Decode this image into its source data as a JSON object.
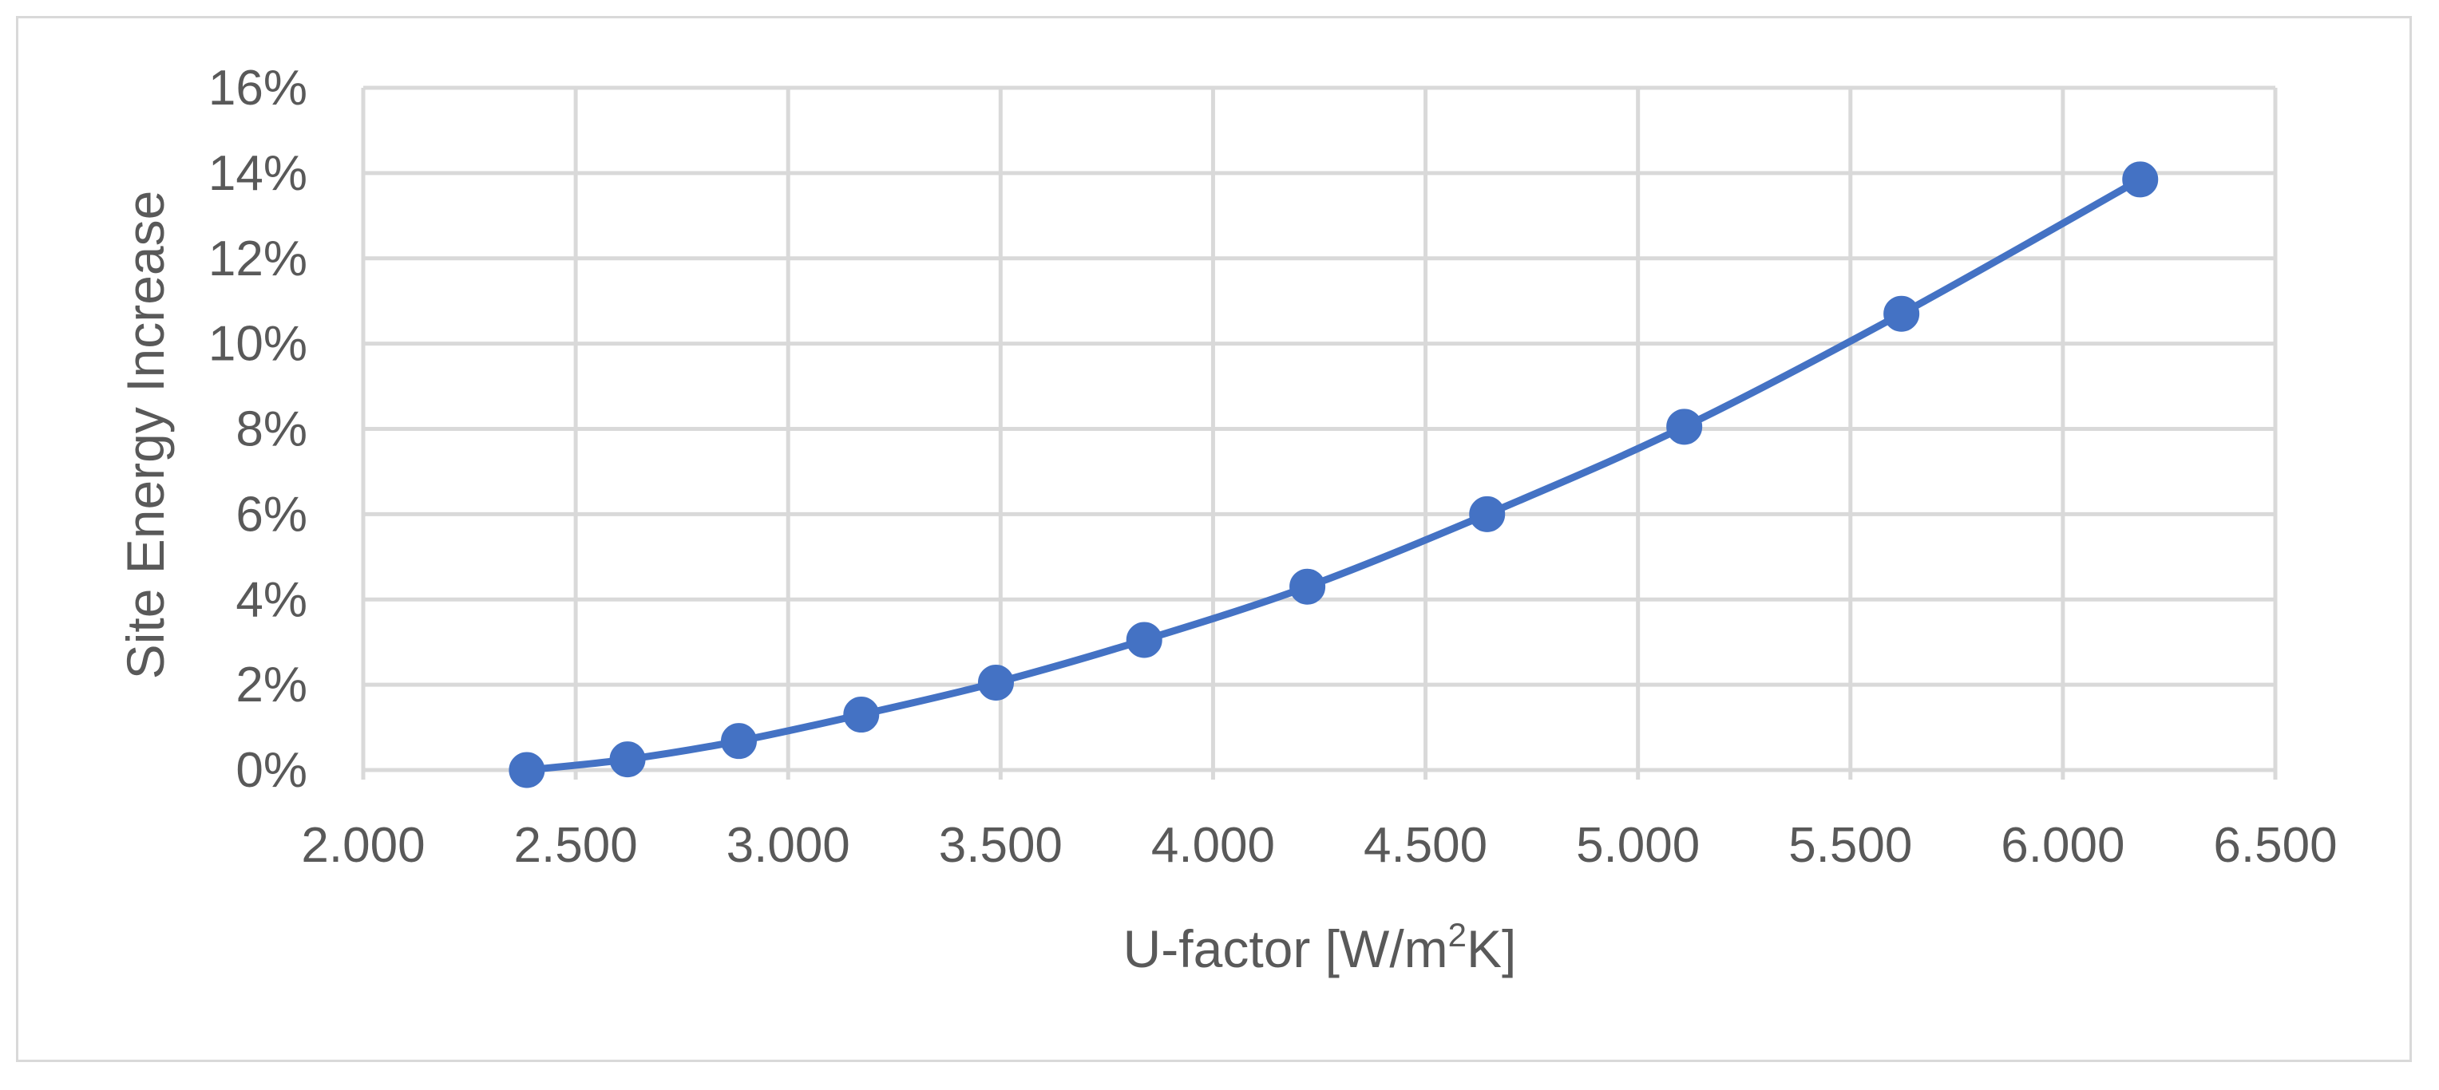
{
  "chart_data": {
    "type": "scatter",
    "title": "",
    "xlabel": "U-factor [W/m",
    "xlabel_sup": "2",
    "xlabel_suffix": "K]",
    "ylabel": "Site Energy Increase",
    "xlim": [
      2.0,
      6.5
    ],
    "ylim": [
      0,
      16
    ],
    "x_ticks": [
      "2.000",
      "2.500",
      "3.000",
      "3.500",
      "4.000",
      "4.500",
      "5.000",
      "5.500",
      "6.000",
      "6.500"
    ],
    "y_ticks": [
      "0%",
      "2%",
      "4%",
      "6%",
      "8%",
      "10%",
      "12%",
      "14%",
      "16%"
    ],
    "grid": true,
    "legend": "none",
    "line_style": "smooth-with-markers",
    "series": [
      {
        "color": "#4472c4",
        "x": [
          2.385,
          2.622,
          2.884,
          3.172,
          3.489,
          3.838,
          4.222,
          4.645,
          5.109,
          5.62,
          6.182
        ],
        "y": [
          0.0,
          0.25,
          0.68,
          1.3,
          2.05,
          3.05,
          4.3,
          6.0,
          8.05,
          10.7,
          13.85
        ]
      }
    ]
  }
}
